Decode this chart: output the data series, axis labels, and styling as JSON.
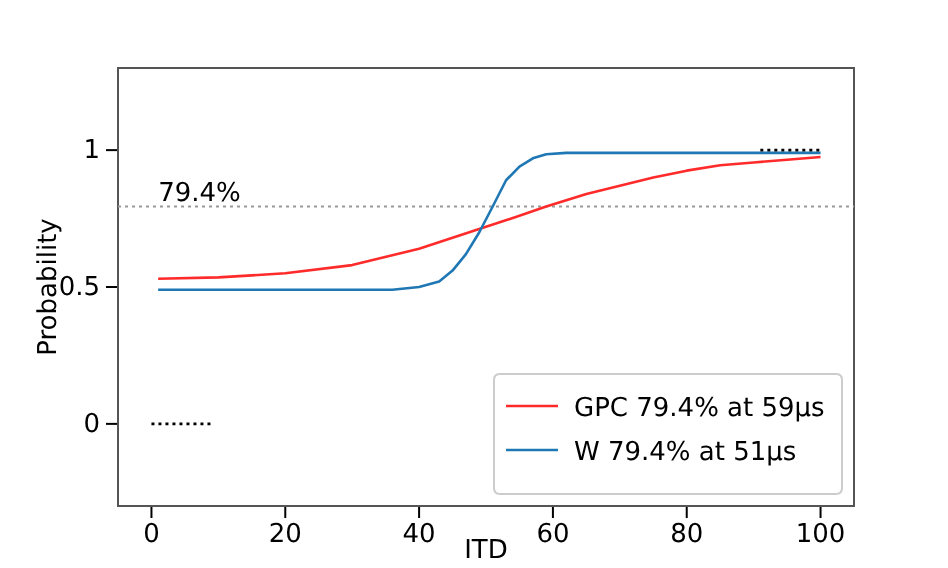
{
  "chart_data": {
    "type": "line",
    "xlabel": "ITD",
    "ylabel": "Probability",
    "xlim": [
      -5,
      105
    ],
    "ylim": [
      -0.3,
      1.3
    ],
    "xticks": [
      0,
      20,
      40,
      60,
      80,
      100
    ],
    "yticks": [
      0,
      0.5,
      1
    ],
    "series": [
      {
        "name": "GPC 79.4% at 59μs",
        "color": "#ff2a2a",
        "x": [
          1,
          10,
          20,
          30,
          40,
          45,
          50,
          55,
          59,
          65,
          70,
          75,
          80,
          85,
          90,
          95,
          100
        ],
        "values": [
          0.53,
          0.535,
          0.55,
          0.58,
          0.64,
          0.68,
          0.72,
          0.76,
          0.794,
          0.84,
          0.87,
          0.9,
          0.925,
          0.945,
          0.955,
          0.965,
          0.975
        ]
      },
      {
        "name": "W 79.4% at 51μs",
        "color": "#1f77b4",
        "x": [
          1,
          20,
          36,
          40,
          43,
          45,
          47,
          49,
          51,
          53,
          55,
          57,
          59,
          62,
          70,
          100
        ],
        "values": [
          0.49,
          0.49,
          0.49,
          0.5,
          0.52,
          0.56,
          0.62,
          0.7,
          0.794,
          0.89,
          0.94,
          0.97,
          0.985,
          0.99,
          0.99,
          0.99
        ]
      },
      {
        "color": "#000000",
        "line_style": "dotted",
        "x": [
          0,
          9
        ],
        "values": [
          0,
          0
        ]
      },
      {
        "color": "#000000",
        "line_style": "dotted",
        "x": [
          91,
          100
        ],
        "values": [
          1,
          1
        ]
      }
    ],
    "ref_lines": [
      {
        "axis": "y",
        "value": 0.794,
        "color": "#999999",
        "line_style": "dotted"
      }
    ],
    "annotations": [
      {
        "text": "79.4%",
        "x": 1,
        "y": 0.794
      }
    ],
    "legend": "bottom right",
    "grid": false
  }
}
